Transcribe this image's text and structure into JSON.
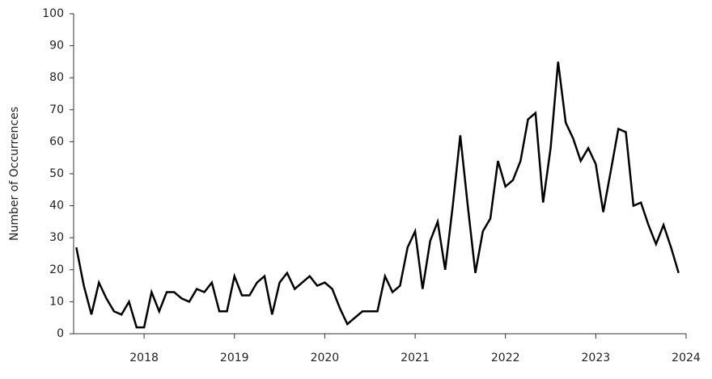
{
  "chart_data": {
    "type": "line",
    "y_label": "Number of Occurrences",
    "color": "#000000",
    "x": [
      2017.25,
      2017.333,
      2017.417,
      2017.5,
      2017.583,
      2017.667,
      2017.75,
      2017.833,
      2017.917,
      2018,
      2018.083,
      2018.167,
      2018.25,
      2018.333,
      2018.417,
      2018.5,
      2018.583,
      2018.667,
      2018.75,
      2018.833,
      2018.917,
      2019,
      2019.083,
      2019.167,
      2019.25,
      2019.333,
      2019.417,
      2019.5,
      2019.583,
      2019.667,
      2019.75,
      2019.833,
      2019.917,
      2020,
      2020.083,
      2020.167,
      2020.25,
      2020.333,
      2020.417,
      2020.5,
      2020.583,
      2020.667,
      2020.75,
      2020.833,
      2020.917,
      2021,
      2021.083,
      2021.167,
      2021.25,
      2021.333,
      2021.417,
      2021.5,
      2021.583,
      2021.667,
      2021.75,
      2021.833,
      2021.917,
      2022,
      2022.083,
      2022.167,
      2022.25,
      2022.333,
      2022.417,
      2022.5,
      2022.583,
      2022.667,
      2022.75,
      2022.833,
      2022.917,
      2023,
      2023.083,
      2023.167,
      2023.25,
      2023.333,
      2023.417,
      2023.5,
      2023.583,
      2023.667,
      2023.75,
      2023.833,
      2023.917
    ],
    "values": [
      27,
      15,
      6,
      16,
      11,
      7,
      6,
      10,
      2,
      2,
      13,
      7,
      13,
      13,
      11,
      10,
      14,
      13,
      16,
      7,
      7,
      18,
      12,
      12,
      16,
      18,
      6,
      16,
      19,
      14,
      16,
      18,
      15,
      16,
      14,
      8,
      3,
      5,
      7,
      7,
      7,
      18,
      13,
      15,
      27,
      32,
      14,
      29,
      35,
      20,
      40,
      62,
      40,
      19,
      32,
      36,
      54,
      46,
      48,
      54,
      67,
      69,
      41,
      58,
      85,
      66,
      61,
      54,
      58,
      53,
      38,
      51,
      64,
      63,
      40,
      41,
      34,
      28,
      34,
      27,
      19
    ],
    "xlim": [
      2017.22,
      2024
    ],
    "xticks": [
      2018,
      2019,
      2020,
      2021,
      2022,
      2023,
      2024
    ],
    "ylim": [
      0,
      100
    ],
    "yticks": [
      0,
      10,
      20,
      30,
      40,
      50,
      60,
      70,
      80,
      90,
      100
    ]
  }
}
